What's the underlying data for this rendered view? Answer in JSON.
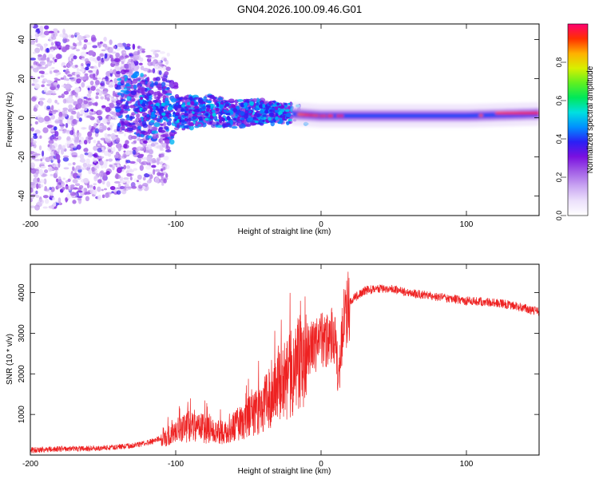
{
  "figure_title": "GN04.2026.100.09.46.G01",
  "colors": {
    "snr_line": "#ee2222",
    "axis": "#000000",
    "colormap": [
      "#ffffff",
      "#ece0fb",
      "#c9a6f2",
      "#a25ee6",
      "#7a10e0",
      "#2a20f5",
      "#0090ff",
      "#00e0e0",
      "#00e85a",
      "#60f020",
      "#d8f000",
      "#ffb000",
      "#ff3000",
      "#ff0070"
    ]
  },
  "chart_data": [
    {
      "type": "heatmap",
      "xlabel": "Height of straight line (km)",
      "ylabel": "Frequency (Hz)",
      "xlim": [
        -200,
        150
      ],
      "ylim": [
        -50,
        48
      ],
      "xticks": [
        -200,
        -100,
        0,
        100
      ],
      "yticks": [
        -40,
        -20,
        0,
        20,
        40
      ],
      "colorbar": {
        "label": "Normalized spectral amplitude",
        "range": [
          0.0,
          1.0
        ],
        "ticks": [
          0.0,
          0.2,
          0.4,
          0.6,
          0.8
        ]
      },
      "ridge": {
        "description_points_x": [
          -140,
          -120,
          -100,
          -80,
          -60,
          -40,
          -20,
          0,
          20,
          60,
          100,
          150
        ],
        "description_points_freq": [
          10,
          6,
          2,
          4,
          2,
          3,
          2,
          1,
          1,
          1,
          1,
          2
        ],
        "steady_amplitude_above_x0": 0.4,
        "peak_amplitude_near_x110": 0.9,
        "peak_amplitude_near_x150": 0.95
      }
    },
    {
      "type": "line",
      "xlabel": "Height of straight line (km)",
      "ylabel": "SNR (10 * v/v)",
      "xlim": [
        -200,
        150
      ],
      "ylim": [
        0,
        4700
      ],
      "xticks": [
        -200,
        -100,
        0,
        100
      ],
      "yticks": [
        1000,
        2000,
        3000,
        4000
      ],
      "series": [
        {
          "name": "SNR",
          "x": [
            -200,
            -180,
            -160,
            -140,
            -125,
            -115,
            -105,
            -95,
            -85,
            -80,
            -75,
            -65,
            -55,
            -45,
            -35,
            -25,
            -18,
            -14,
            -10,
            -5,
            0,
            5,
            10,
            12,
            15,
            20,
            30,
            40,
            50,
            60,
            70,
            80,
            90,
            100,
            110,
            120,
            130,
            140,
            150
          ],
          "y": [
            120,
            150,
            160,
            200,
            260,
            350,
            500,
            650,
            700,
            640,
            560,
            600,
            800,
            1050,
            1400,
            1800,
            2100,
            2500,
            2600,
            2700,
            2800,
            2900,
            3000,
            1700,
            3200,
            3800,
            4050,
            4100,
            4080,
            4000,
            3950,
            3900,
            3850,
            3800,
            3780,
            3750,
            3700,
            3620,
            3520
          ]
        }
      ]
    }
  ]
}
